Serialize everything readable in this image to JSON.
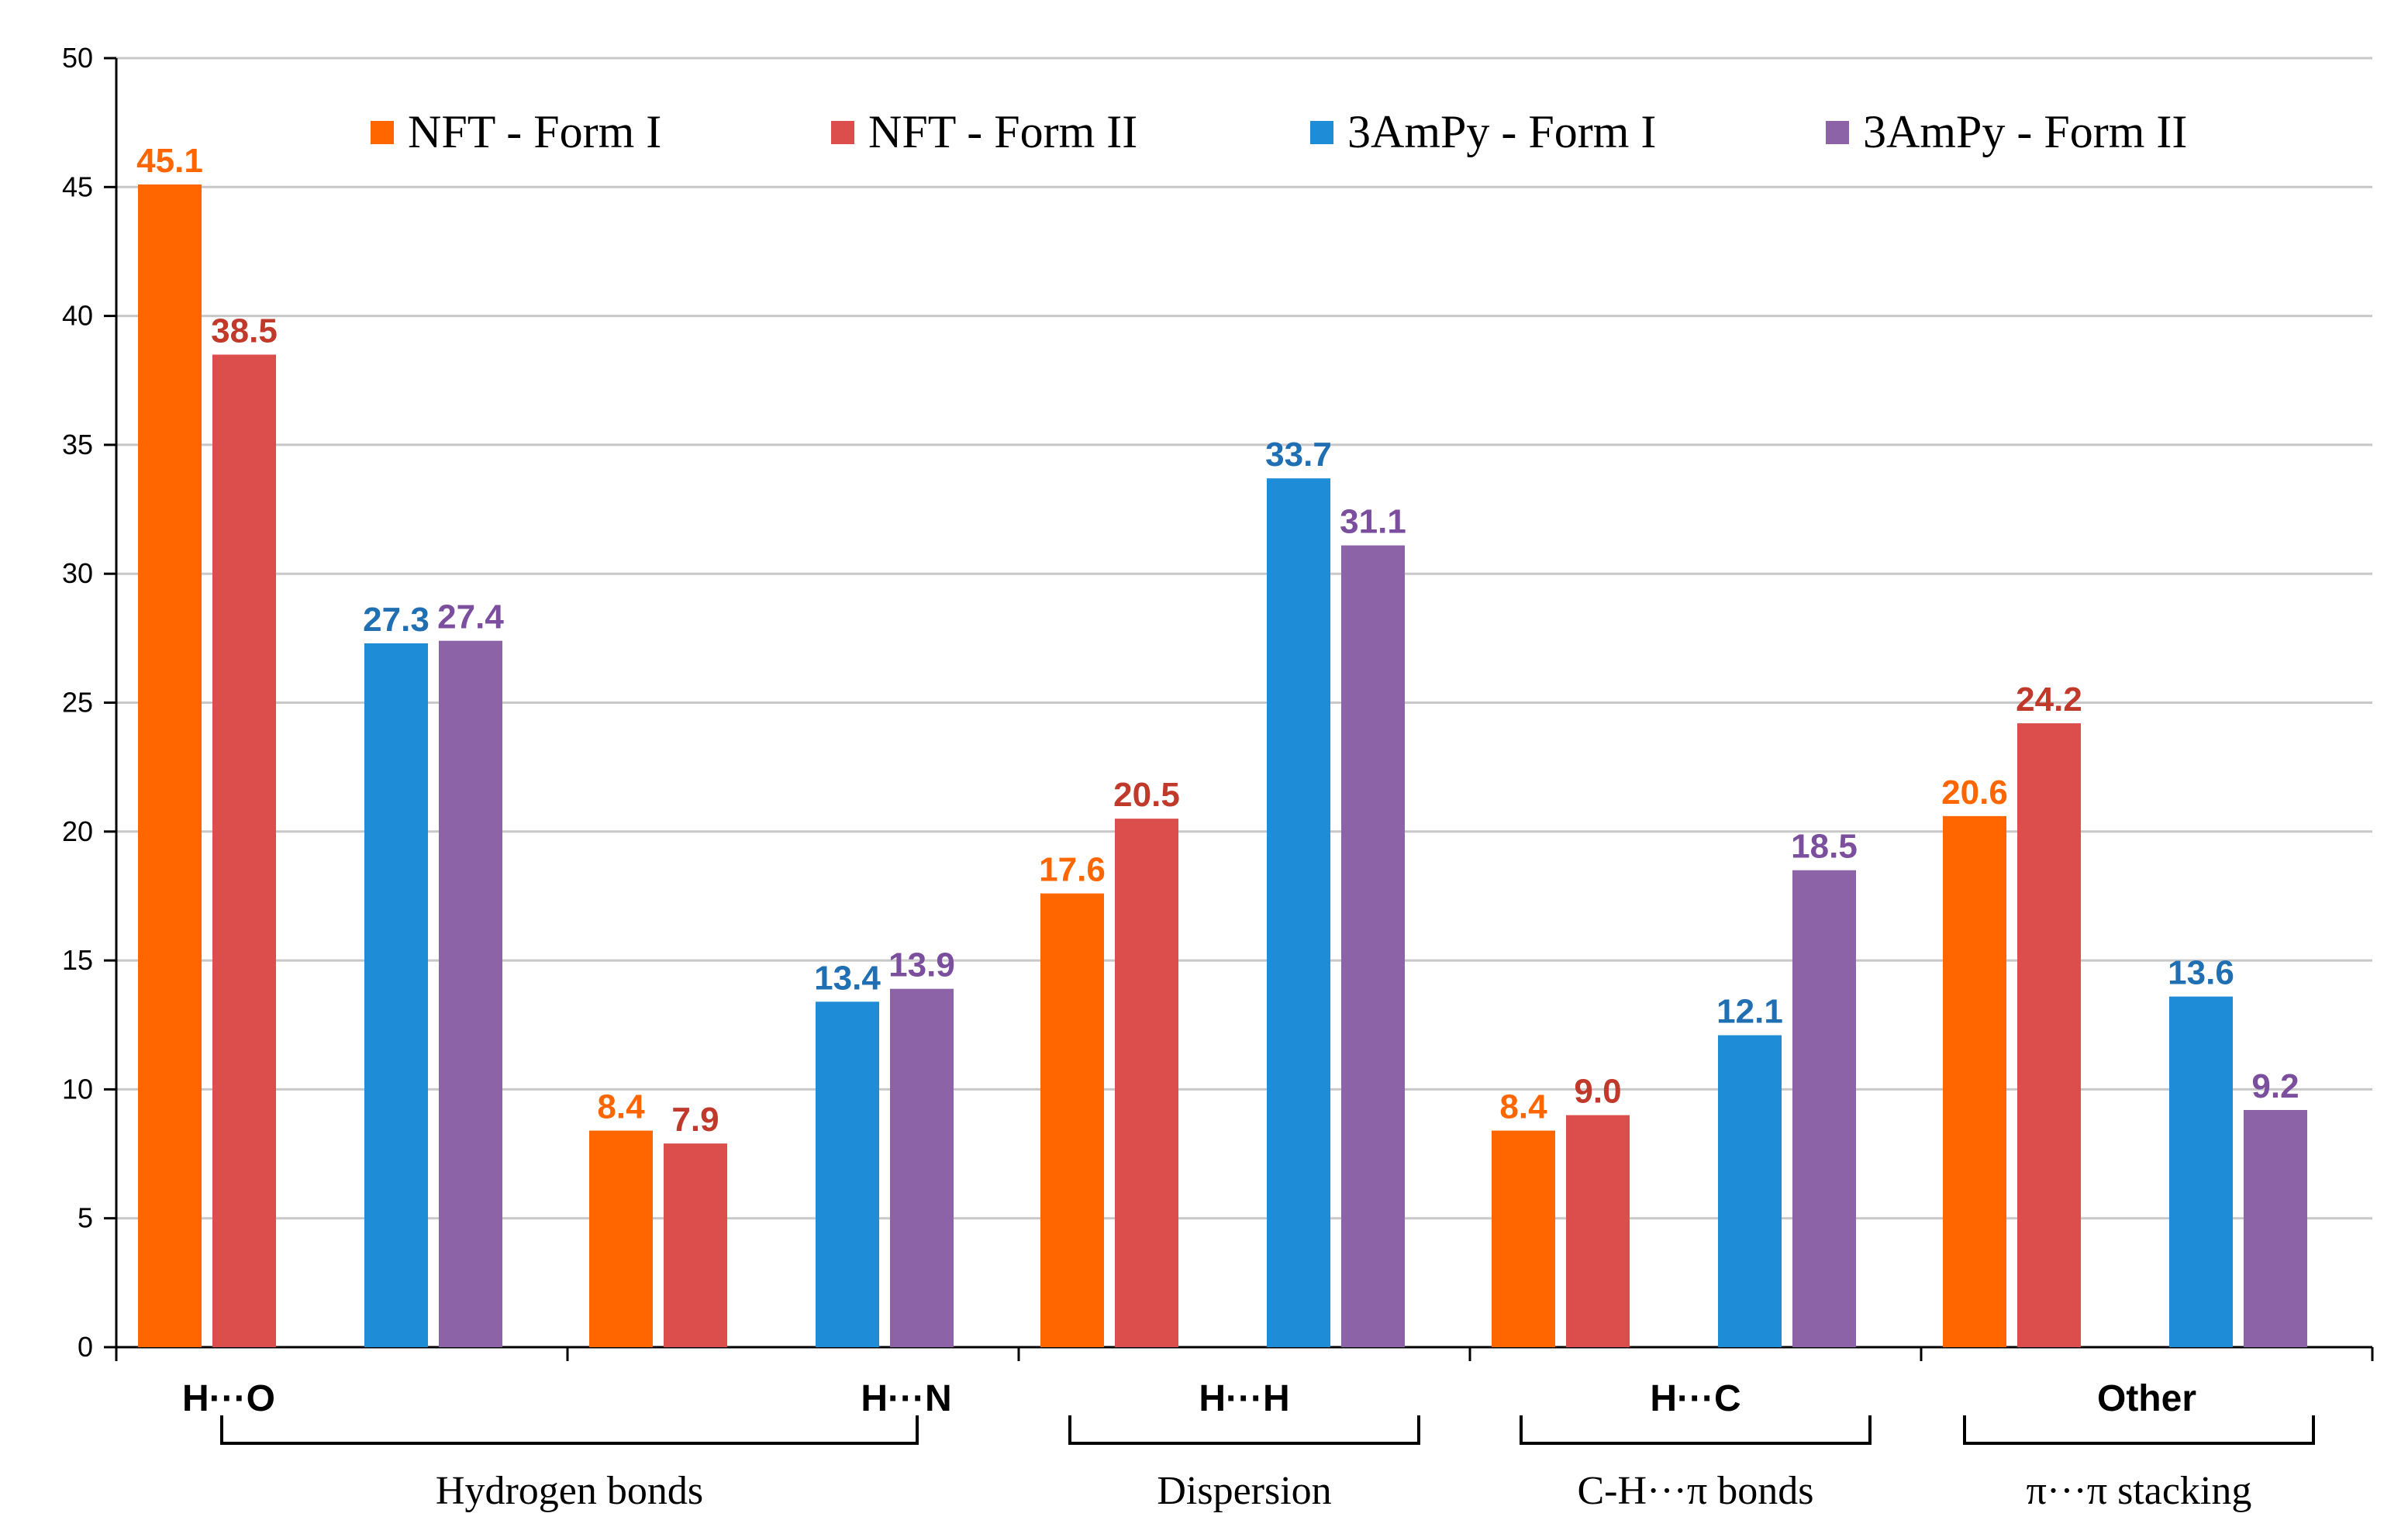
{
  "chart_data": {
    "type": "bar",
    "title": "",
    "xlabel": "",
    "ylabel": "",
    "ylim": [
      0,
      50
    ],
    "yticks": [
      0,
      5,
      10,
      15,
      20,
      25,
      30,
      35,
      40,
      45,
      50
    ],
    "grid": true,
    "legend_position": "top",
    "categories": [
      "H···O",
      "H···N",
      "H···H",
      "H···C",
      "Other"
    ],
    "groups": [
      {
        "label": "Hydrogen bonds",
        "categories": [
          "H···O",
          "H···N"
        ]
      },
      {
        "label": "Dispersion",
        "categories": [
          "H···H"
        ]
      },
      {
        "label": "C-H···π bonds",
        "categories": [
          "H···C"
        ]
      },
      {
        "label": "π···π stacking",
        "categories": [
          "Other"
        ]
      }
    ],
    "series": [
      {
        "name": "NFT - Form I",
        "color": "#ff6600",
        "values": [
          45.1,
          8.4,
          17.6,
          8.4,
          20.6
        ],
        "labels": [
          "45.1",
          "8.4",
          "17.6",
          "8.4",
          "20.6"
        ]
      },
      {
        "name": "NFT - Form II",
        "color": "#dc4e4c",
        "values": [
          38.5,
          7.9,
          20.5,
          9.0,
          24.2
        ],
        "labels": [
          "38.5",
          "7.9",
          "20.5",
          "9.0",
          "24.2"
        ]
      },
      {
        "name": "3AmPy - Form I",
        "color": "#1f8cd8",
        "values": [
          27.3,
          13.4,
          33.7,
          12.1,
          13.6
        ],
        "labels": [
          "27.3",
          "13.4",
          "33.7",
          "12.1",
          "13.6"
        ]
      },
      {
        "name": "3AmPy - Form II",
        "color": "#8c63a6",
        "values": [
          27.4,
          13.9,
          31.1,
          18.5,
          9.2
        ],
        "labels": [
          "27.4",
          "13.9",
          "31.1",
          "18.5",
          "9.2"
        ]
      }
    ],
    "value_label_colors": [
      "#ff6600",
      "#c0392b",
      "#1f6fb2",
      "#7b4f9d"
    ]
  }
}
